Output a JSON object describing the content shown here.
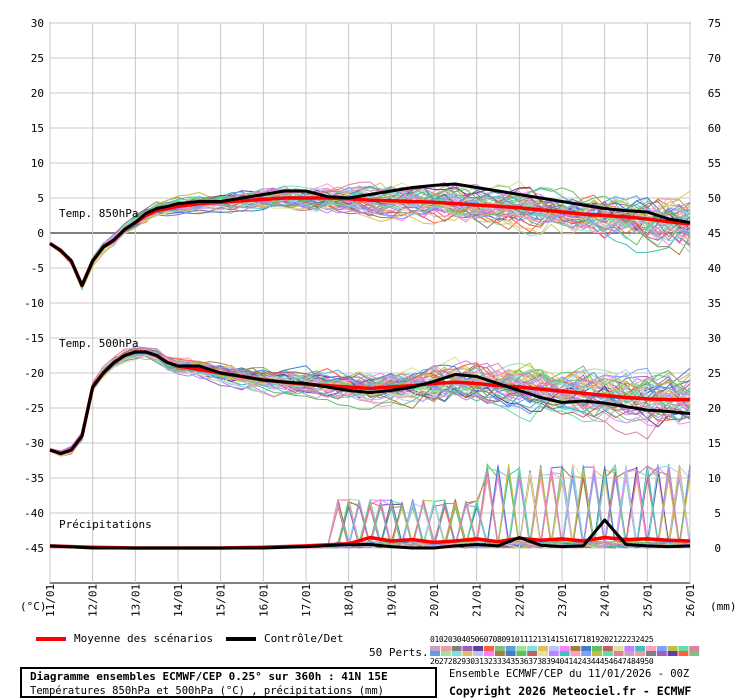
{
  "chart_data": {
    "type": "line",
    "x_labels": [
      "11/01",
      "12/01",
      "13/01",
      "14/01",
      "15/01",
      "16/01",
      "17/01",
      "18/01",
      "19/01",
      "20/01",
      "21/01",
      "22/01",
      "23/01",
      "24/01",
      "25/01",
      "26/01"
    ],
    "left_axis": {
      "unit": "(°C)",
      "ticks": [
        30,
        25,
        20,
        15,
        10,
        5,
        0,
        -5,
        -10,
        -15,
        -20,
        -25,
        -30,
        -35,
        -40,
        -45
      ]
    },
    "right_axis": {
      "unit": "(mm)",
      "ticks": [
        75,
        70,
        65,
        60,
        55,
        50,
        45,
        40,
        35,
        30,
        25,
        20,
        15,
        10,
        5,
        0
      ]
    },
    "panel_labels": {
      "t850": "Temp. 850hPa",
      "t500": "Temp. 500hPa",
      "precip": "Précipitations"
    },
    "grid": true,
    "series": [
      {
        "name": "Moyenne des scénarios",
        "color": "#ff0000",
        "panel": "t850",
        "x": [
          0,
          0.25,
          0.5,
          0.75,
          1,
          1.25,
          1.5,
          1.75,
          2,
          2.25,
          2.5,
          2.75,
          3,
          3.5,
          4,
          4.5,
          5,
          5.5,
          6,
          6.5,
          7,
          7.5,
          8,
          8.5,
          9,
          9.5,
          10,
          10.5,
          11,
          11.5,
          12,
          12.5,
          13,
          13.5,
          14,
          14.5,
          15
        ],
        "values": [
          -1.5,
          -2.5,
          -4,
          -7.5,
          -4,
          -2,
          -1,
          0.5,
          1.5,
          2.5,
          3.2,
          3.5,
          3.8,
          4.2,
          4.4,
          4.6,
          4.8,
          5,
          5,
          5,
          4.9,
          4.7,
          4.6,
          4.5,
          4.4,
          4.2,
          4,
          3.8,
          3.6,
          3.3,
          3,
          2.7,
          2.5,
          2.3,
          2,
          1.6,
          1.3
        ]
      },
      {
        "name": "Contrôle/Det",
        "color": "#000000",
        "panel": "t850",
        "x": [
          0,
          0.25,
          0.5,
          0.75,
          1,
          1.25,
          1.5,
          1.75,
          2,
          2.25,
          2.5,
          2.75,
          3,
          3.5,
          4,
          4.5,
          5,
          5.5,
          6,
          6.5,
          7,
          7.5,
          8,
          8.5,
          9,
          9.5,
          10,
          10.5,
          11,
          11.5,
          12,
          12.5,
          13,
          13.5,
          14,
          14.5,
          15
        ],
        "values": [
          -1.5,
          -2.5,
          -4,
          -7.5,
          -4,
          -2,
          -1,
          0.5,
          1.5,
          2.8,
          3.5,
          3.8,
          4.2,
          4.5,
          4.5,
          5,
          5.5,
          6,
          6,
          5.2,
          5,
          5.5,
          6,
          6.5,
          6.8,
          7,
          6.5,
          6,
          5.5,
          5,
          4.5,
          4,
          3.5,
          3.2,
          3,
          2,
          1.5
        ]
      },
      {
        "name": "Moyenne des scénarios",
        "color": "#ff0000",
        "panel": "t500",
        "x": [
          0,
          0.25,
          0.5,
          0.75,
          1,
          1.25,
          1.5,
          1.75,
          2,
          2.25,
          2.5,
          2.75,
          3,
          3.5,
          4,
          4.5,
          5,
          5.5,
          6,
          6.5,
          7,
          7.5,
          8,
          8.5,
          9,
          9.5,
          10,
          10.5,
          11,
          11.5,
          12,
          12.5,
          13,
          13.5,
          14,
          14.5,
          15
        ],
        "values": [
          -31,
          -31.5,
          -31,
          -29,
          -22,
          -20,
          -18.5,
          -17.5,
          -17,
          -17,
          -17.5,
          -18.5,
          -19,
          -19.5,
          -20,
          -20.5,
          -21,
          -21.3,
          -21.6,
          -21.8,
          -22,
          -22.2,
          -22,
          -21.8,
          -21.5,
          -21.3,
          -21.5,
          -21.8,
          -22,
          -22.3,
          -22.6,
          -22.9,
          -23.2,
          -23.5,
          -23.7,
          -23.8,
          -23.8
        ]
      },
      {
        "name": "Contrôle/Det",
        "color": "#000000",
        "panel": "t500",
        "x": [
          0,
          0.25,
          0.5,
          0.75,
          1,
          1.25,
          1.5,
          1.75,
          2,
          2.25,
          2.5,
          2.75,
          3,
          3.5,
          4,
          4.5,
          5,
          5.5,
          6,
          6.5,
          7,
          7.5,
          8,
          8.5,
          9,
          9.5,
          10,
          10.5,
          11,
          11.5,
          12,
          12.5,
          13,
          13.5,
          14,
          14.5,
          15
        ],
        "values": [
          -31,
          -31.5,
          -31,
          -29,
          -22,
          -20,
          -18.5,
          -17.5,
          -17,
          -17,
          -17.5,
          -18.5,
          -19,
          -19,
          -20,
          -20.5,
          -21,
          -21.3,
          -21.5,
          -22,
          -22.5,
          -22.8,
          -22.5,
          -22,
          -21.2,
          -20.2,
          -20.5,
          -21.5,
          -22.5,
          -23.5,
          -24.2,
          -24,
          -24.3,
          -24.8,
          -25.3,
          -25.5,
          -25.8
        ]
      },
      {
        "name": "Moyenne des scénarios",
        "color": "#ff0000",
        "panel": "precip",
        "x": [
          0,
          1,
          2,
          3,
          4,
          5,
          6,
          7,
          7.5,
          8,
          8.5,
          9,
          9.5,
          10,
          10.5,
          11,
          11.5,
          12,
          12.5,
          13,
          13.5,
          14,
          14.5,
          15
        ],
        "values": [
          0.3,
          0.1,
          0,
          0,
          0,
          0.1,
          0.3,
          0.6,
          1.5,
          1,
          1.2,
          0.8,
          1,
          1.3,
          0.9,
          1.4,
          1.1,
          1.3,
          1,
          1.5,
          1.2,
          1.3,
          1.1,
          1
        ]
      },
      {
        "name": "Contrôle/Det",
        "color": "#000000",
        "panel": "precip",
        "x": [
          0,
          1,
          2,
          3,
          4,
          5,
          6,
          7,
          7.5,
          8,
          8.5,
          9,
          9.5,
          10,
          10.5,
          11,
          11.5,
          12,
          12.5,
          13,
          13.5,
          14,
          14.5,
          15
        ],
        "values": [
          0.3,
          0,
          0,
          0,
          0,
          0,
          0.2,
          0.5,
          0.5,
          0.2,
          0,
          0,
          0.3,
          0.5,
          0.3,
          1.5,
          0.4,
          0.2,
          0.3,
          4,
          0.5,
          0.3,
          0.2,
          0.3
        ]
      }
    ]
  },
  "legend": {
    "mean_label": "Moyenne des scénarios",
    "control_label": "Contrôle/Det",
    "perts_label": "50 Perts.",
    "pert_row1": "01020304050607080910111213141516171819202122232425",
    "pert_row2": "26272829303132333435363738394041424344454647484950"
  },
  "colors": {
    "mean": "#ff0000",
    "control": "#000000",
    "grid": "#c8c8c8",
    "zero_line": "#808080",
    "perturbation_palette": [
      "#c8a0c8",
      "#e6a0a0",
      "#808080",
      "#a060c0",
      "#6040a0",
      "#ff6040",
      "#80c080",
      "#60a0e0",
      "#a0e0a0",
      "#80e0e0",
      "#e0c060",
      "#c0c0ff",
      "#ff80ff",
      "#a08040",
      "#4080c0",
      "#60c060",
      "#c06060",
      "#e0e0a0",
      "#c080ff",
      "#40c0c0",
      "#ffa0c0",
      "#80a0ff",
      "#c0c040",
      "#60e0a0",
      "#e080a0"
    ]
  },
  "footer": {
    "title": "Diagramme ensembles ECMWF/CEP 0.25° sur 360h : 41N 15E",
    "subtitle": "Températures 850hPa et 500hPa (°C) , précipitations (mm)",
    "run_info": "Ensemble ECMWF/CEP du 11/01/2026 - 00Z",
    "copyright": "Copyright 2026 Meteociel.fr - ECMWF"
  }
}
